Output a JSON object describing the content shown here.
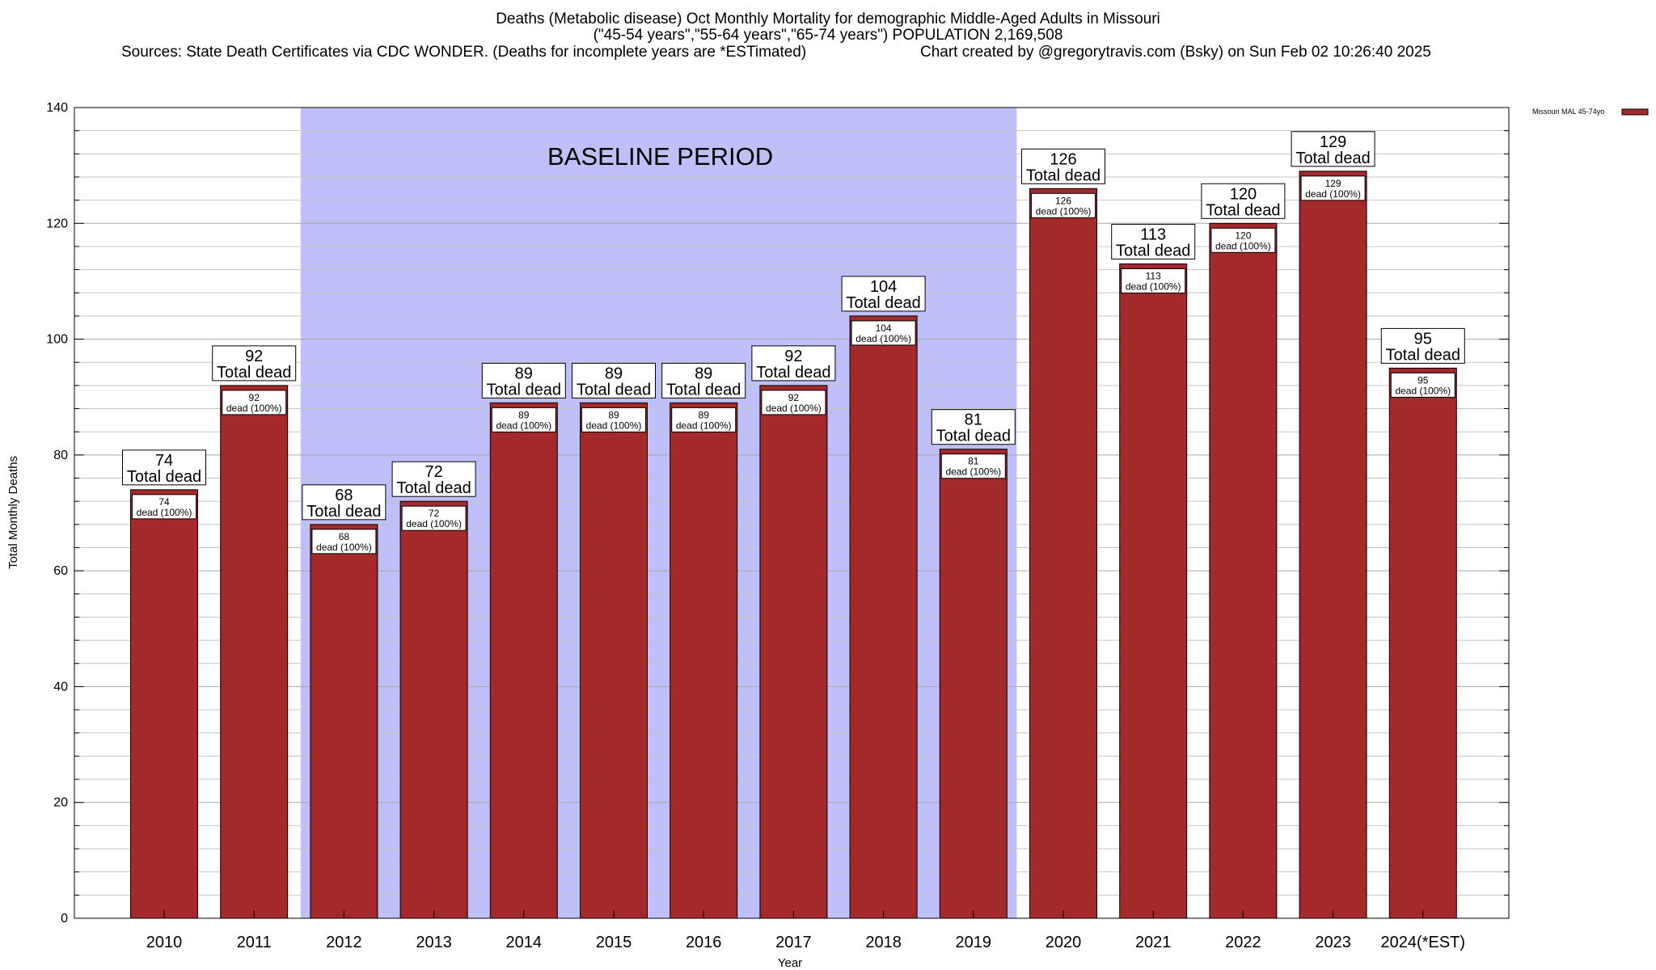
{
  "title": {
    "line1": "Deaths (Metabolic disease) Oct Monthly Mortality for demographic Middle-Aged Adults in Missouri",
    "line2": "(\"45-54 years\",\"55-64 years\",\"65-74 years\") POPULATION 2,169,508",
    "sources": "Sources: State Death Certificates via CDC WONDER. (Deaths for incomplete years are *ESTimated)",
    "credit": "Chart created by @gregorytravis.com (Bsky) on Sun Feb 02 10:26:40 2025"
  },
  "chart_data": {
    "type": "bar",
    "xlabel": "Year",
    "ylabel": "Total Monthly Deaths",
    "ylim": [
      0,
      140
    ],
    "yticks": [
      0,
      20,
      40,
      60,
      80,
      100,
      120,
      140
    ],
    "minor_step": 4,
    "grid": true,
    "legend": {
      "position": "top-right",
      "label": "Missouri MAL 45-74yo"
    },
    "baseline": {
      "label": "BASELINE PERIOD",
      "start": "2012",
      "end": "2019"
    },
    "categories": [
      "2010",
      "2011",
      "2012",
      "2013",
      "2014",
      "2015",
      "2016",
      "2017",
      "2018",
      "2019",
      "2020",
      "2021",
      "2022",
      "2023",
      "2024(*EST)"
    ],
    "series": [
      {
        "name": "Missouri MAL 45-74yo",
        "values": [
          74,
          92,
          68,
          72,
          89,
          89,
          89,
          92,
          104,
          81,
          126,
          113,
          120,
          129,
          95
        ]
      }
    ],
    "top_label_suffix": "Total dead",
    "inner_label_suffix": "dead (100%)"
  },
  "colors": {
    "bar": "#a3292b",
    "baseline": "#bfbffa",
    "grid": "#c4c4c4"
  }
}
